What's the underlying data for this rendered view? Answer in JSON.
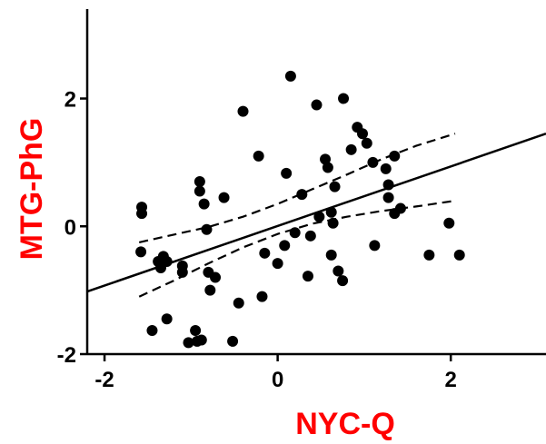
{
  "chart_data": {
    "type": "scatter",
    "title": "",
    "xlabel": "NYC-Q",
    "ylabel": "MTG-PhG",
    "label_color": "#ff0000",
    "xlim": [
      -2.2,
      3.1
    ],
    "ylim": [
      -2,
      3.4
    ],
    "xticks": [
      -2,
      0,
      2
    ],
    "xtick_labels": [
      "-2",
      "0",
      "2"
    ],
    "yticks": [
      -2,
      0,
      2
    ],
    "ytick_labels": [
      "-2",
      "0",
      "2"
    ],
    "grid": false,
    "points": [
      {
        "x": -1.57,
        "y": 0.3
      },
      {
        "x": -1.57,
        "y": 0.2
      },
      {
        "x": -1.58,
        "y": -0.4
      },
      {
        "x": -1.45,
        "y": -1.63
      },
      {
        "x": -1.38,
        "y": -0.55
      },
      {
        "x": -1.35,
        "y": -0.65
      },
      {
        "x": -1.32,
        "y": -0.47
      },
      {
        "x": -1.28,
        "y": -0.55
      },
      {
        "x": -1.28,
        "y": -1.45
      },
      {
        "x": -1.1,
        "y": -0.62
      },
      {
        "x": -1.1,
        "y": -0.72
      },
      {
        "x": -1.03,
        "y": -1.82
      },
      {
        "x": -0.95,
        "y": -1.63
      },
      {
        "x": -0.93,
        "y": -1.8
      },
      {
        "x": -0.88,
        "y": -1.78
      },
      {
        "x": -0.9,
        "y": 0.7
      },
      {
        "x": -0.9,
        "y": 0.55
      },
      {
        "x": -0.85,
        "y": 0.35
      },
      {
        "x": -0.82,
        "y": -0.05
      },
      {
        "x": -0.8,
        "y": -0.72
      },
      {
        "x": -0.78,
        "y": -1.0
      },
      {
        "x": -0.72,
        "y": -0.8
      },
      {
        "x": -0.62,
        "y": 0.45
      },
      {
        "x": -0.52,
        "y": -1.8
      },
      {
        "x": -0.45,
        "y": -1.2
      },
      {
        "x": -0.4,
        "y": 1.8
      },
      {
        "x": -0.22,
        "y": 1.1
      },
      {
        "x": -0.18,
        "y": -1.1
      },
      {
        "x": -0.15,
        "y": -0.42
      },
      {
        "x": 0.0,
        "y": -0.58
      },
      {
        "x": 0.08,
        "y": -0.3
      },
      {
        "x": 0.1,
        "y": 0.83
      },
      {
        "x": 0.15,
        "y": 2.35
      },
      {
        "x": 0.2,
        "y": -0.1
      },
      {
        "x": 0.28,
        "y": 0.5
      },
      {
        "x": 0.35,
        "y": -0.78
      },
      {
        "x": 0.38,
        "y": -0.15
      },
      {
        "x": 0.45,
        "y": 1.9
      },
      {
        "x": 0.48,
        "y": 0.15
      },
      {
        "x": 0.55,
        "y": 1.05
      },
      {
        "x": 0.58,
        "y": 0.92
      },
      {
        "x": 0.62,
        "y": 0.22
      },
      {
        "x": 0.64,
        "y": 0.05
      },
      {
        "x": 0.62,
        "y": -0.45
      },
      {
        "x": 0.66,
        "y": 0.62
      },
      {
        "x": 0.7,
        "y": -0.7
      },
      {
        "x": 0.75,
        "y": -0.85
      },
      {
        "x": 0.76,
        "y": 2.0
      },
      {
        "x": 0.85,
        "y": 1.2
      },
      {
        "x": 0.92,
        "y": 1.55
      },
      {
        "x": 0.98,
        "y": 1.45
      },
      {
        "x": 1.03,
        "y": 1.3
      },
      {
        "x": 1.1,
        "y": 1.0
      },
      {
        "x": 1.12,
        "y": -0.3
      },
      {
        "x": 1.25,
        "y": 0.9
      },
      {
        "x": 1.28,
        "y": 0.65
      },
      {
        "x": 1.28,
        "y": 0.45
      },
      {
        "x": 1.35,
        "y": 0.2
      },
      {
        "x": 1.35,
        "y": 1.1
      },
      {
        "x": 1.42,
        "y": 0.28
      },
      {
        "x": 1.75,
        "y": -0.45
      },
      {
        "x": 1.98,
        "y": 0.05
      },
      {
        "x": 2.1,
        "y": -0.45
      }
    ],
    "fit_line": {
      "x": [
        -2.2,
        3.1
      ],
      "y": [
        -1.02,
        1.45
      ]
    },
    "confidence_upper": {
      "x": [
        -1.6,
        -1.2,
        -0.8,
        -0.4,
        0.0,
        0.4,
        0.8,
        1.2,
        1.6,
        2.05
      ],
      "y": [
        -0.25,
        -0.13,
        -0.01,
        0.15,
        0.35,
        0.58,
        0.81,
        1.05,
        1.26,
        1.45
      ]
    },
    "confidence_lower": {
      "x": [
        -1.6,
        -1.2,
        -0.8,
        -0.4,
        0.0,
        0.4,
        0.8,
        1.2,
        1.6,
        2.05
      ],
      "y": [
        -1.1,
        -0.85,
        -0.58,
        -0.33,
        -0.12,
        0.04,
        0.15,
        0.24,
        0.31,
        0.4
      ]
    },
    "colors": {
      "points": "#000000",
      "lines": "#000000",
      "labels": "#ff0000"
    }
  }
}
